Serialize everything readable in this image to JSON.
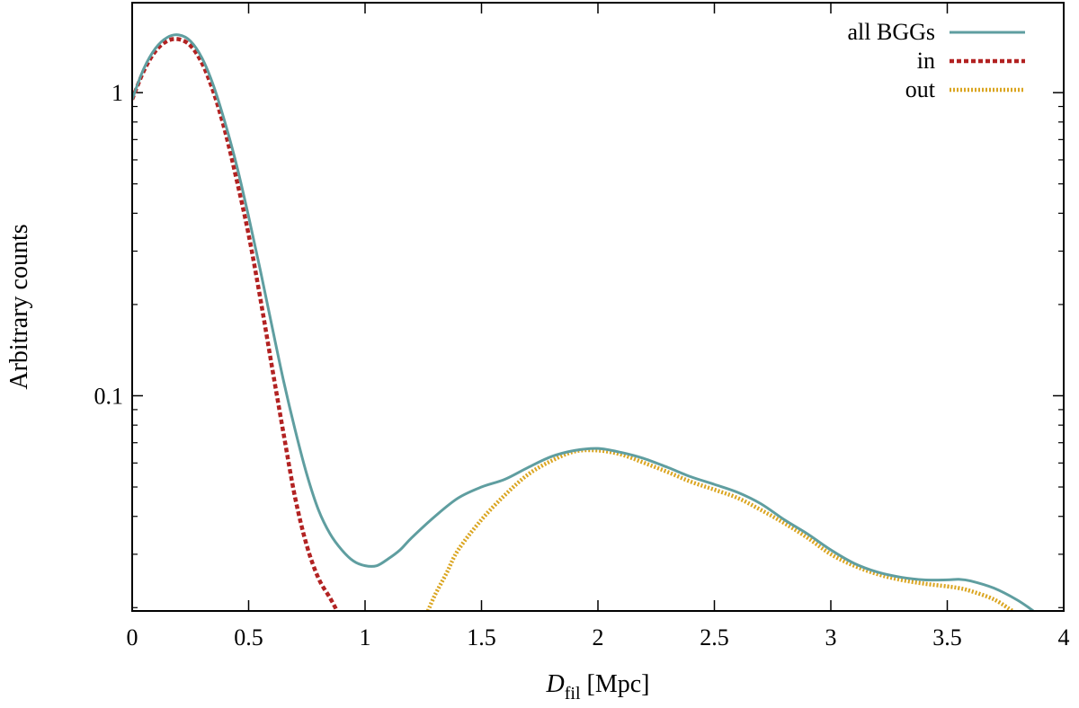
{
  "chart_data": {
    "type": "line",
    "title": "",
    "xlabel": {
      "main": "D",
      "sub": "fil",
      "unit": " [Mpc]"
    },
    "ylabel": "Arbitrary counts",
    "xlim": [
      0,
      4
    ],
    "ylim": [
      0.0195,
      1.98
    ],
    "yscale": "log",
    "grid": false,
    "legend_position": "top-right",
    "x_ticks": [
      0,
      0.5,
      1,
      1.5,
      2,
      2.5,
      3,
      3.5,
      4
    ],
    "x_tick_labels": [
      "0",
      "0.5",
      "1",
      "1.5",
      "2",
      "2.5",
      "3",
      "3.5",
      "4"
    ],
    "y_major_ticks": [
      0.1,
      1
    ],
    "y_tick_labels": [
      "0.1",
      "1"
    ],
    "y_minor_ticks": [
      0.02,
      0.03,
      0.04,
      0.05,
      0.06,
      0.07,
      0.08,
      0.09,
      0.2,
      0.3,
      0.4,
      0.5,
      0.6,
      0.7,
      0.8,
      0.9
    ],
    "series": [
      {
        "name": "all BGGs",
        "color": "#5f9ea0",
        "style": "solid",
        "x": [
          0,
          0.05,
          0.1,
          0.15,
          0.2,
          0.25,
          0.3,
          0.35,
          0.4,
          0.45,
          0.5,
          0.55,
          0.6,
          0.65,
          0.7,
          0.75,
          0.8,
          0.85,
          0.9,
          0.95,
          1.0,
          1.05,
          1.1,
          1.15,
          1.2,
          1.3,
          1.4,
          1.5,
          1.6,
          1.7,
          1.8,
          1.9,
          2.0,
          2.1,
          2.2,
          2.3,
          2.4,
          2.5,
          2.6,
          2.7,
          2.8,
          2.9,
          3.0,
          3.1,
          3.2,
          3.3,
          3.4,
          3.5,
          3.55,
          3.6,
          3.7,
          3.8,
          3.87
        ],
        "y": [
          0.95,
          1.2,
          1.4,
          1.52,
          1.55,
          1.48,
          1.3,
          1.05,
          0.79,
          0.57,
          0.39,
          0.26,
          0.17,
          0.112,
          0.077,
          0.055,
          0.042,
          0.035,
          0.031,
          0.0285,
          0.0275,
          0.0275,
          0.029,
          0.031,
          0.034,
          0.04,
          0.046,
          0.05,
          0.053,
          0.058,
          0.063,
          0.066,
          0.067,
          0.065,
          0.062,
          0.058,
          0.054,
          0.051,
          0.048,
          0.044,
          0.039,
          0.035,
          0.031,
          0.028,
          0.0262,
          0.0252,
          0.0247,
          0.0247,
          0.0248,
          0.0245,
          0.0232,
          0.0212,
          0.0195
        ]
      },
      {
        "name": "in",
        "color": "#b22222",
        "style": "dashed",
        "x": [
          0,
          0.05,
          0.1,
          0.15,
          0.2,
          0.25,
          0.3,
          0.35,
          0.4,
          0.45,
          0.5,
          0.55,
          0.6,
          0.65,
          0.7,
          0.75,
          0.8,
          0.85,
          0.88
        ],
        "y": [
          0.95,
          1.18,
          1.37,
          1.48,
          1.5,
          1.43,
          1.25,
          1.0,
          0.74,
          0.51,
          0.34,
          0.21,
          0.125,
          0.075,
          0.046,
          0.032,
          0.025,
          0.0215,
          0.0195
        ]
      },
      {
        "name": "out",
        "color": "#daa520",
        "style": "dotted",
        "x": [
          1.27,
          1.3,
          1.35,
          1.4,
          1.5,
          1.6,
          1.7,
          1.8,
          1.9,
          2.0,
          2.1,
          2.2,
          2.3,
          2.4,
          2.5,
          2.6,
          2.7,
          2.8,
          2.9,
          3.0,
          3.1,
          3.2,
          3.3,
          3.4,
          3.5,
          3.55,
          3.6,
          3.7,
          3.78
        ],
        "y": [
          0.0195,
          0.022,
          0.026,
          0.031,
          0.039,
          0.047,
          0.055,
          0.061,
          0.0655,
          0.066,
          0.064,
          0.06,
          0.056,
          0.052,
          0.049,
          0.046,
          0.042,
          0.038,
          0.034,
          0.03,
          0.0275,
          0.0258,
          0.0247,
          0.024,
          0.0235,
          0.0232,
          0.0227,
          0.0213,
          0.0195
        ]
      }
    ]
  }
}
